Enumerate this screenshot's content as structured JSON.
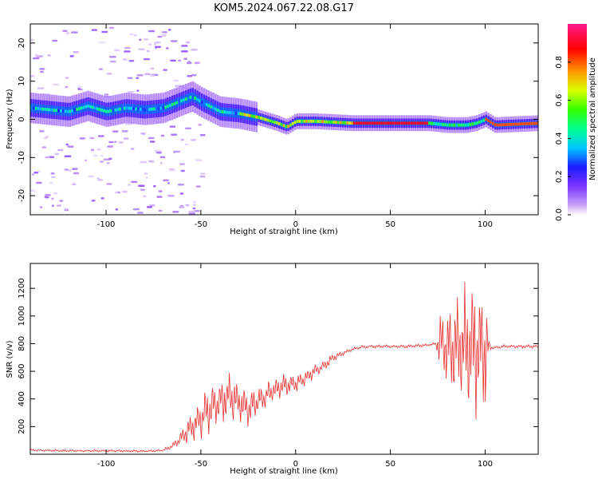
{
  "title": "KOM5.2024.067.22.08.G17",
  "colors": {
    "snr_line": "#e8302f",
    "axis": "#000000",
    "background": "#ffffff"
  },
  "chart_data": [
    {
      "type": "heatmap",
      "xlabel": "Height of straight line (km)",
      "ylabel": "Frequency (Hz)",
      "xlim": [
        -140,
        128
      ],
      "ylim": [
        -25,
        25
      ],
      "x_ticks": [
        -100,
        -50,
        0,
        50,
        100
      ],
      "y_ticks": [
        -20,
        -10,
        0,
        10,
        20
      ],
      "colorbar": {
        "label": "Normalized spectral amplitude",
        "range": [
          0,
          1
        ],
        "ticks": [
          0.0,
          0.2,
          0.4,
          0.6,
          0.8
        ],
        "colormap": [
          "#ffffff",
          "#c9a3f7",
          "#7a33ff",
          "#1c1cff",
          "#00c8ff",
          "#00ff90",
          "#33ff00",
          "#d8ff00",
          "#ff9900",
          "#ff0000",
          "#ff1a8a"
        ]
      },
      "ridge": {
        "x": [
          -140,
          -120,
          -110,
          -100,
          -90,
          -80,
          -70,
          -60,
          -55,
          -50,
          -40,
          -30,
          -20,
          -10,
          -5,
          0,
          10,
          30,
          50,
          70,
          80,
          90,
          95,
          100,
          105,
          128
        ],
        "frequency": [
          3,
          2,
          3.5,
          2,
          3,
          2.5,
          3,
          5,
          6,
          4.5,
          2,
          1.5,
          0.5,
          -1,
          -2,
          -0.5,
          -0.5,
          -1,
          -1,
          -1,
          -1.5,
          -1.5,
          -1,
          0,
          -1.5,
          -1
        ]
      }
    },
    {
      "type": "line",
      "xlabel": "Height of straight line (km)",
      "ylabel": "SNR (v/v)",
      "xlim": [
        -140,
        128
      ],
      "ylim": [
        0,
        1380
      ],
      "x_ticks": [
        -100,
        -50,
        0,
        50,
        100
      ],
      "y_ticks": [
        200,
        400,
        600,
        800,
        1000,
        1200
      ],
      "series": [
        {
          "x": [
            -140,
            -120,
            -100,
            -80,
            -70,
            -65,
            -60,
            -55,
            -50,
            -45,
            -40,
            -35,
            -30,
            -25,
            -20,
            -15,
            -10,
            -5,
            0,
            5,
            10,
            15,
            20,
            25,
            30,
            35,
            40,
            50,
            60,
            70,
            74,
            76,
            80,
            85,
            90,
            95,
            100,
            102,
            104,
            110,
            120,
            128
          ],
          "y": [
            30,
            25,
            25,
            22,
            28,
            60,
            120,
            200,
            260,
            330,
            380,
            420,
            380,
            320,
            380,
            430,
            470,
            500,
            510,
            550,
            600,
            640,
            700,
            730,
            760,
            775,
            780,
            780,
            780,
            790,
            800,
            800,
            780,
            780,
            780,
            780,
            770,
            780,
            770,
            780,
            780,
            780
          ],
          "amplitude": [
            10,
            10,
            10,
            10,
            10,
            30,
            80,
            150,
            180,
            200,
            220,
            250,
            200,
            150,
            120,
            120,
            110,
            100,
            80,
            70,
            60,
            50,
            35,
            20,
            15,
            15,
            15,
            15,
            15,
            15,
            15,
            250,
            350,
            450,
            550,
            600,
            700,
            80,
            15,
            15,
            15,
            15
          ]
        }
      ]
    }
  ]
}
